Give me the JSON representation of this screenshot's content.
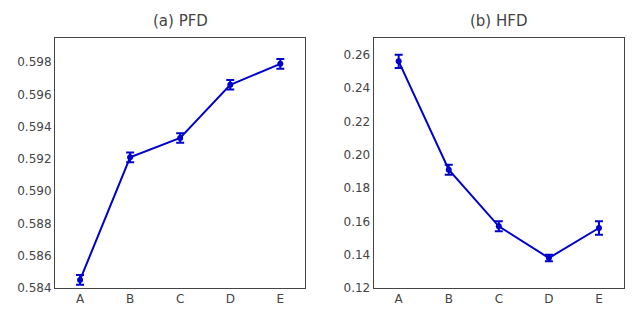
{
  "chart_data": [
    {
      "type": "line",
      "title": "(a) PFD",
      "categories": [
        "A",
        "B",
        "C",
        "D",
        "E"
      ],
      "values": [
        0.5845,
        0.5921,
        0.5933,
        0.5966,
        0.5979
      ],
      "errors": [
        0.0003,
        0.0003,
        0.0003,
        0.0003,
        0.0003
      ],
      "color": "#0000cc",
      "marker": "circle",
      "line_style": "solid",
      "ylim": [
        0.584,
        0.5995
      ],
      "yticks": [
        0.584,
        0.586,
        0.588,
        {
          "value": 0.59,
          "label": "0.590"
        },
        0.592,
        0.594,
        0.596,
        0.598
      ],
      "grid": false
    },
    {
      "type": "line",
      "title": "(b) HFD",
      "categories": [
        "A",
        "B",
        "C",
        "D",
        "E"
      ],
      "values": [
        0.256,
        0.191,
        0.157,
        0.138,
        0.156
      ],
      "errors": [
        0.004,
        0.003,
        0.003,
        0.002,
        0.004
      ],
      "color": "#0000cc",
      "marker": "circle",
      "line_style": "solid",
      "ylim": [
        0.12,
        0.27
      ],
      "yticks": [
        0.12,
        0.14,
        0.16,
        0.18,
        {
          "value": 0.2,
          "label": "0.20"
        },
        0.22,
        0.24,
        0.26
      ],
      "grid": false
    }
  ]
}
